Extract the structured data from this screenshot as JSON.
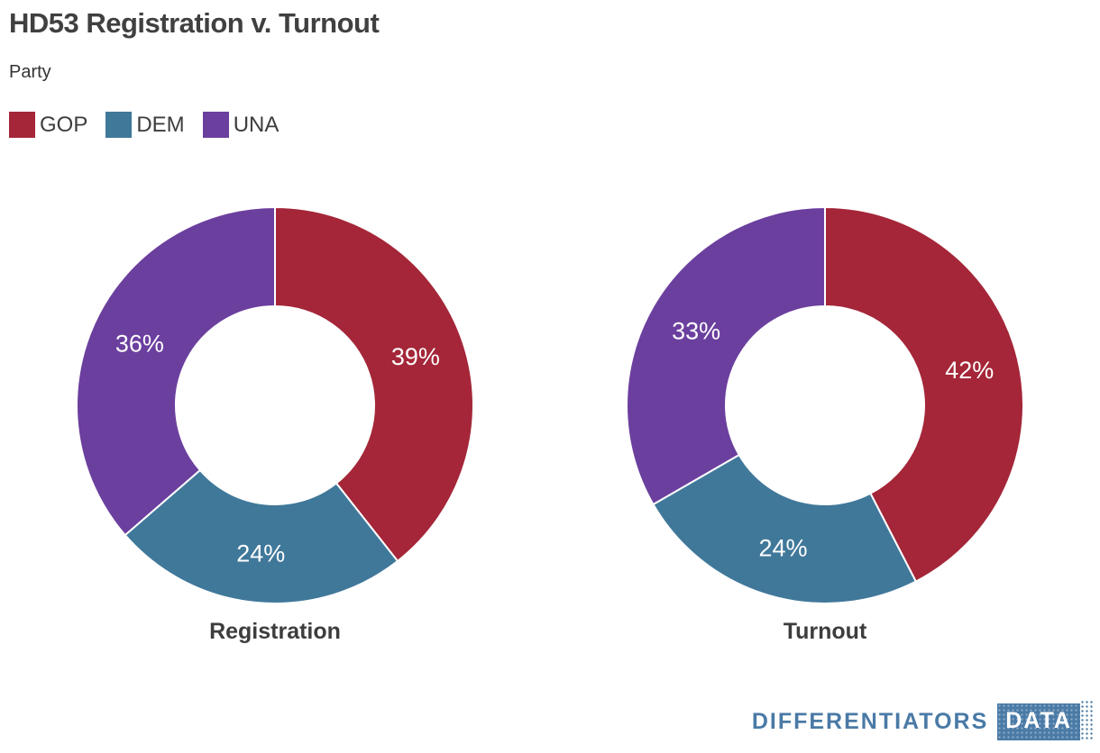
{
  "title": "HD53 Registration v. Turnout",
  "legend_title": "Party",
  "legend": [
    {
      "label": "GOP",
      "color": "#A42638"
    },
    {
      "label": "DEM",
      "color": "#40789A"
    },
    {
      "label": "UNA",
      "color": "#6B3F9E"
    }
  ],
  "chart_data": [
    {
      "type": "pie",
      "subtype": "donut",
      "title": "Registration",
      "categories": [
        "GOP",
        "DEM",
        "UNA"
      ],
      "values": [
        39,
        24,
        36
      ],
      "value_labels": [
        "39%",
        "24%",
        "36%"
      ],
      "colors": [
        "#A42638",
        "#40789A",
        "#6B3F9E"
      ],
      "start_angle_deg": 0,
      "direction": "clockwise",
      "inner_radius_ratio": 0.5,
      "label_color": "#ffffff",
      "labels_inside": true
    },
    {
      "type": "pie",
      "subtype": "donut",
      "title": "Turnout",
      "categories": [
        "GOP",
        "DEM",
        "UNA"
      ],
      "values": [
        42,
        24,
        33
      ],
      "value_labels": [
        "42%",
        "24%",
        "33%"
      ],
      "colors": [
        "#A42638",
        "#40789A",
        "#6B3F9E"
      ],
      "start_angle_deg": 0,
      "direction": "clockwise",
      "inner_radius_ratio": 0.5,
      "label_color": "#ffffff",
      "labels_inside": true
    }
  ],
  "branding": {
    "wordmark": "DIFFERENTIATORS",
    "badge": "DATA",
    "color": "#4A7AA6"
  }
}
